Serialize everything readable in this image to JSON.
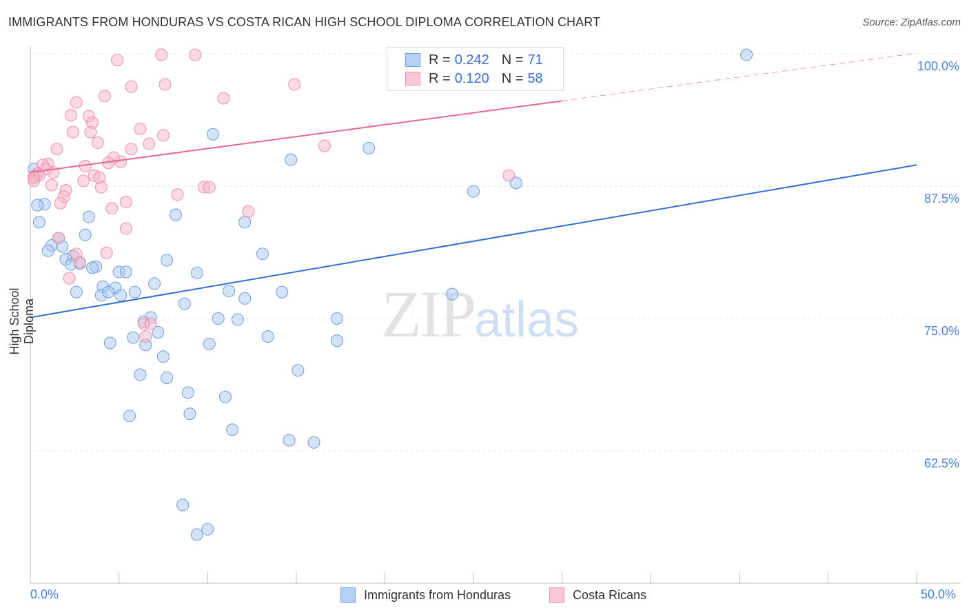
{
  "title": "IMMIGRANTS FROM HONDURAS VS COSTA RICAN HIGH SCHOOL DIPLOMA CORRELATION CHART",
  "source": "Source: ZipAtlas.com",
  "watermark": "ZIPatlas",
  "chart_data": {
    "type": "scatter",
    "xlabel": "",
    "ylabel": "High School Diploma",
    "xlim": [
      0,
      50
    ],
    "ylim": [
      50,
      100.7
    ],
    "x_tick_labels": [
      "0.0%",
      "50.0%"
    ],
    "y_ticks": [
      100,
      87.5,
      75,
      62.5
    ],
    "y_tick_labels": [
      "100.0%",
      "87.5%",
      "75.0%",
      "62.5%"
    ],
    "grid": true,
    "legend_placement": "top-center",
    "series": [
      {
        "name": "Immigrants from Honduras",
        "color": "#6f9fdc",
        "fill": "#a9c8f0",
        "line_color": "#2f6fd6",
        "R": "0.242",
        "N": "71",
        "trend": {
          "intercept": 75.1,
          "slope": 0.288,
          "solid_to": 50
        },
        "points": [
          [
            40.4,
            99.9
          ],
          [
            28.2,
            99.9
          ],
          [
            24.5,
            99.9
          ],
          [
            10.3,
            92.4
          ],
          [
            19.1,
            91.1
          ],
          [
            14.7,
            90.0
          ],
          [
            25.0,
            87.0
          ],
          [
            27.4,
            87.8
          ],
          [
            0.8,
            85.8
          ],
          [
            0.4,
            85.7
          ],
          [
            0.5,
            84.1
          ],
          [
            3.3,
            84.6
          ],
          [
            8.2,
            84.8
          ],
          [
            12.1,
            84.1
          ],
          [
            3.1,
            82.9
          ],
          [
            1.6,
            82.6
          ],
          [
            1.2,
            81.9
          ],
          [
            1.8,
            81.8
          ],
          [
            1.0,
            81.4
          ],
          [
            2.4,
            80.9
          ],
          [
            2.0,
            80.6
          ],
          [
            2.8,
            80.2
          ],
          [
            2.3,
            80.1
          ],
          [
            3.7,
            79.9
          ],
          [
            3.5,
            79.8
          ],
          [
            7.7,
            80.5
          ],
          [
            13.1,
            81.1
          ],
          [
            9.4,
            79.3
          ],
          [
            5.0,
            79.4
          ],
          [
            5.4,
            79.4
          ],
          [
            4.1,
            78.0
          ],
          [
            4.8,
            77.9
          ],
          [
            7.0,
            78.3
          ],
          [
            2.6,
            77.5
          ],
          [
            4.0,
            77.2
          ],
          [
            4.4,
            77.5
          ],
          [
            5.1,
            77.2
          ],
          [
            5.9,
            77.5
          ],
          [
            11.2,
            77.6
          ],
          [
            14.2,
            77.5
          ],
          [
            12.1,
            76.9
          ],
          [
            8.7,
            76.4
          ],
          [
            23.8,
            77.3
          ],
          [
            6.8,
            75.1
          ],
          [
            6.4,
            74.7
          ],
          [
            10.6,
            75.0
          ],
          [
            11.7,
            74.9
          ],
          [
            17.3,
            75.0
          ],
          [
            7.2,
            73.7
          ],
          [
            5.8,
            73.2
          ],
          [
            13.4,
            73.3
          ],
          [
            4.5,
            72.7
          ],
          [
            6.5,
            72.5
          ],
          [
            10.1,
            72.6
          ],
          [
            17.3,
            72.9
          ],
          [
            7.5,
            71.4
          ],
          [
            15.1,
            70.1
          ],
          [
            6.2,
            69.7
          ],
          [
            7.7,
            69.4
          ],
          [
            8.9,
            68.0
          ],
          [
            11.0,
            67.6
          ],
          [
            5.6,
            65.8
          ],
          [
            9.0,
            66.0
          ],
          [
            11.4,
            64.5
          ],
          [
            14.6,
            63.5
          ],
          [
            16.0,
            63.3
          ],
          [
            8.6,
            57.4
          ],
          [
            10.0,
            55.1
          ],
          [
            9.4,
            54.6
          ],
          [
            0.2,
            89.1
          ],
          [
            0.3,
            88.5
          ]
        ]
      },
      {
        "name": "Costa Ricans",
        "color": "#ec8fab",
        "fill": "#f7b6c8",
        "line_color": "#e8679a",
        "R": "0.120",
        "N": "58",
        "trend": {
          "intercept": 88.8,
          "slope": 0.225,
          "solid_to": 30
        },
        "points": [
          [
            4.9,
            99.4
          ],
          [
            7.4,
            99.9
          ],
          [
            9.3,
            99.9
          ],
          [
            5.7,
            96.9
          ],
          [
            7.6,
            97.1
          ],
          [
            4.2,
            96.0
          ],
          [
            10.9,
            95.8
          ],
          [
            14.9,
            97.1
          ],
          [
            2.6,
            95.4
          ],
          [
            2.3,
            94.2
          ],
          [
            3.3,
            94.1
          ],
          [
            3.5,
            93.5
          ],
          [
            2.4,
            92.6
          ],
          [
            3.4,
            92.6
          ],
          [
            6.2,
            92.9
          ],
          [
            7.5,
            92.3
          ],
          [
            3.8,
            91.6
          ],
          [
            6.7,
            91.5
          ],
          [
            5.7,
            91.0
          ],
          [
            1.5,
            91.0
          ],
          [
            16.6,
            91.3
          ],
          [
            4.7,
            90.2
          ],
          [
            5.1,
            89.8
          ],
          [
            4.4,
            89.7
          ],
          [
            3.1,
            89.4
          ],
          [
            1.0,
            89.6
          ],
          [
            0.7,
            89.5
          ],
          [
            0.9,
            89.1
          ],
          [
            1.3,
            88.8
          ],
          [
            0.4,
            88.7
          ],
          [
            0.2,
            88.4
          ],
          [
            3.6,
            88.5
          ],
          [
            3.9,
            88.3
          ],
          [
            3.0,
            88.0
          ],
          [
            1.2,
            87.6
          ],
          [
            2.0,
            87.1
          ],
          [
            4.0,
            87.4
          ],
          [
            9.8,
            87.4
          ],
          [
            10.1,
            87.4
          ],
          [
            8.3,
            86.7
          ],
          [
            1.9,
            86.5
          ],
          [
            1.7,
            85.9
          ],
          [
            5.4,
            86.0
          ],
          [
            4.6,
            85.4
          ],
          [
            12.3,
            85.1
          ],
          [
            5.4,
            83.5
          ],
          [
            1.6,
            82.6
          ],
          [
            2.6,
            81.1
          ],
          [
            4.3,
            81.2
          ],
          [
            2.8,
            80.3
          ],
          [
            2.2,
            78.8
          ],
          [
            6.4,
            74.5
          ],
          [
            6.8,
            74.5
          ],
          [
            6.5,
            73.3
          ],
          [
            27.0,
            88.5
          ],
          [
            0.2,
            88.3
          ],
          [
            0.5,
            88.5
          ],
          [
            0.2,
            88.0
          ]
        ]
      }
    ]
  },
  "legend": {
    "r_label": "R =",
    "n_label": "N ="
  }
}
